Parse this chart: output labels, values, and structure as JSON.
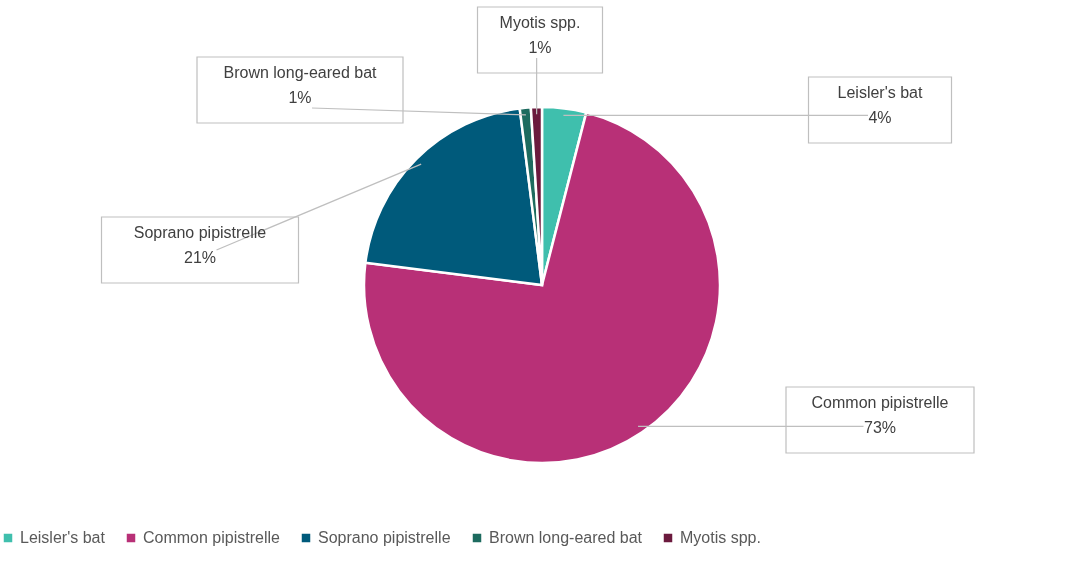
{
  "chart_data": {
    "type": "pie",
    "categories": [
      "Leisler's bat",
      "Common pipistrelle",
      "Soprano pipistrelle",
      "Brown long-eared bat",
      "Myotis spp."
    ],
    "values": [
      4,
      73,
      21,
      1,
      1
    ],
    "value_labels": [
      "4%",
      "73%",
      "21%",
      "1%",
      "1%"
    ],
    "colors": [
      "#3fbfad",
      "#b83077",
      "#005a7b",
      "#1d6b5f",
      "#6b1a3d"
    ],
    "legend": "bottom"
  }
}
